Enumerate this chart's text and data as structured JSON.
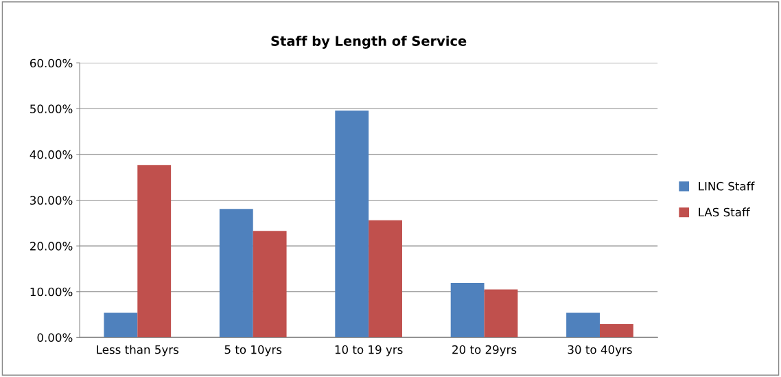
{
  "chart_data": {
    "type": "bar",
    "title": "Staff by Length of Service",
    "categories": [
      "Less than 5yrs",
      "5 to 10yrs",
      "10 to 19 yrs",
      "20 to 29yrs",
      "30 to 40yrs"
    ],
    "series": [
      {
        "name": "LINC Staff",
        "color": "#4f81bd",
        "values": [
          5.4,
          28.1,
          49.6,
          11.9,
          5.4
        ]
      },
      {
        "name": "LAS Staff",
        "color": "#c0504d",
        "values": [
          37.7,
          23.3,
          25.6,
          10.5,
          2.9
        ]
      }
    ],
    "ylim": [
      0,
      60
    ],
    "yticks": [
      {
        "value": 0,
        "label": "0.00%"
      },
      {
        "value": 10,
        "label": "10.00%"
      },
      {
        "value": 20,
        "label": "20.00%"
      },
      {
        "value": 30,
        "label": "30.00%"
      },
      {
        "value": 40,
        "label": "40.00%"
      },
      {
        "value": 50,
        "label": "50.00%"
      },
      {
        "value": 60,
        "label": "60.00%"
      }
    ],
    "grid": "y",
    "legend": "right"
  }
}
